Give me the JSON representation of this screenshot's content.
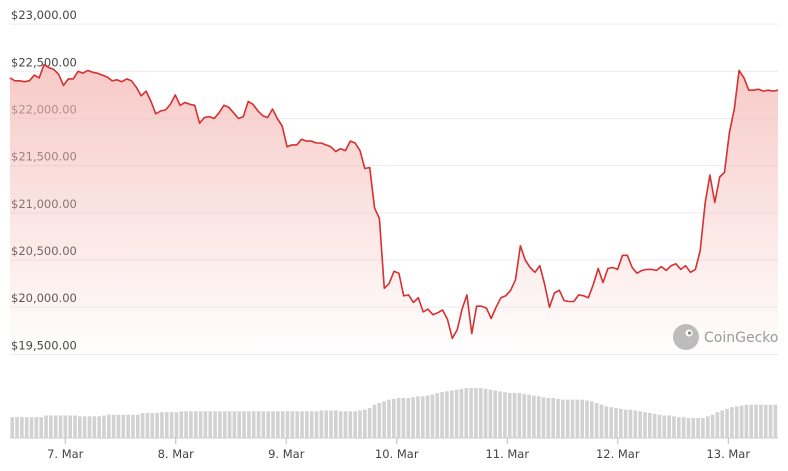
{
  "chart_data": {
    "type": "line",
    "series": [
      {
        "y": [
          22430,
          22400,
          22400,
          22390,
          22400,
          22460,
          22430,
          22570,
          22540,
          22520,
          22470,
          22350,
          22420,
          22420,
          22500,
          22480,
          22510,
          22490,
          22480,
          22460,
          22440,
          22400,
          22410,
          22390,
          22420,
          22400,
          22330,
          22240,
          22290,
          22180,
          22050,
          22080,
          22090,
          22150,
          22250,
          22140,
          22170,
          22150,
          22140,
          21950,
          22010,
          22020,
          22000,
          22060,
          22140,
          22120,
          22060,
          22000,
          22020,
          22180,
          22150,
          22080,
          22030,
          22010,
          22100,
          22000,
          21920,
          21700,
          21720,
          21720,
          21780,
          21760,
          21760,
          21740,
          21740,
          21720,
          21700,
          21650,
          21680,
          21660,
          21760,
          21740,
          21660,
          21470,
          21480,
          21050,
          20940,
          20200,
          20250,
          20380,
          20360,
          20120,
          20130,
          20050,
          20100,
          19950,
          19980,
          19920,
          19940,
          19970,
          19870,
          19670,
          19760,
          19980,
          20130,
          19720,
          20010,
          20010,
          19990,
          19880,
          20000,
          20100,
          20120,
          20180,
          20290,
          20650,
          20500,
          20420,
          20370,
          20440,
          20240,
          20000,
          20150,
          20180,
          20070,
          20060,
          20060,
          20130,
          20120,
          20100,
          20240,
          20410,
          20260,
          20410,
          20420,
          20400,
          20550,
          20550,
          20420,
          20360,
          20390,
          20400,
          20400,
          20390,
          20430,
          20390,
          20440,
          20460,
          20400,
          20440,
          20370,
          20400,
          20600,
          21100,
          21400,
          21110,
          21380,
          21430,
          21850,
          22100,
          22510,
          22430,
          22300,
          22300,
          22310,
          22290,
          22300,
          22290,
          22300
        ]
      }
    ],
    "y_ticks": [
      "$23,000.00",
      "$22,500.00",
      "$22,000.00",
      "$21,500.00",
      "$21,000.00",
      "$20,500.00",
      "$20,000.00",
      "$19,500.00"
    ],
    "y_tick_values": [
      23000,
      22500,
      22000,
      21500,
      21000,
      20500,
      20000,
      19500
    ],
    "x_ticks": [
      "7. Mar",
      "8. Mar",
      "9. Mar",
      "10. Mar",
      "11. Mar",
      "12. Mar",
      "13. Mar"
    ],
    "x_tick_positions": [
      0.5,
      1.5,
      2.5,
      3.5,
      4.5,
      5.5,
      6.5
    ],
    "x_range": [
      0,
      6.95
    ],
    "ylim": [
      19440,
      23150
    ],
    "volume": [
      25,
      25,
      25,
      25,
      25,
      25,
      25,
      27,
      27,
      27,
      27,
      27,
      27,
      27,
      26,
      26,
      26,
      26,
      26,
      27,
      28,
      28,
      28,
      28,
      28,
      28,
      28,
      30,
      30,
      30,
      30,
      31,
      31,
      31,
      31,
      32,
      32,
      32,
      32,
      32,
      32,
      32,
      32,
      32,
      32,
      32,
      32,
      32,
      32,
      32,
      32,
      32,
      32,
      32,
      32,
      32,
      32,
      32,
      32,
      32,
      32,
      32,
      32,
      32,
      33,
      33,
      33,
      33,
      32,
      32,
      32,
      32,
      33,
      34,
      36,
      40,
      42,
      44,
      46,
      47,
      48,
      48,
      48,
      49,
      50,
      50,
      51,
      52,
      54,
      55,
      56,
      57,
      58,
      59,
      60,
      60,
      60,
      60,
      59,
      58,
      57,
      56,
      55,
      54,
      54,
      54,
      53,
      52,
      51,
      50,
      49,
      48,
      48,
      47,
      46,
      46,
      46,
      46,
      46,
      45,
      44,
      42,
      40,
      38,
      37,
      36,
      35,
      34,
      34,
      33,
      32,
      31,
      30,
      29,
      28,
      27,
      27,
      26,
      25,
      25,
      24,
      24,
      24,
      24,
      26,
      28,
      31,
      33,
      35,
      37,
      38,
      39,
      40,
      40,
      40,
      40,
      40,
      40,
      40
    ],
    "volume_max": 60,
    "watermark": "CoinGecko",
    "line_color": "#d63031",
    "fill_color": "#f4b8b4",
    "volume_color": "#d2d2d2",
    "grid": true
  }
}
